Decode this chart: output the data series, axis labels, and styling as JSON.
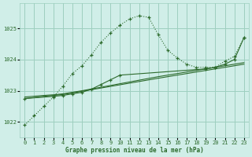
{
  "title": "Graphe pression niveau de la mer (hPa)",
  "bg_color": "#d0eee8",
  "grid_color": "#9ecfbf",
  "line_color": "#2d6b2d",
  "xlim": [
    -0.5,
    23.5
  ],
  "ylim": [
    1021.5,
    1025.8
  ],
  "yticks": [
    1022,
    1023,
    1024,
    1025
  ],
  "xticks": [
    0,
    1,
    2,
    3,
    4,
    5,
    6,
    7,
    8,
    9,
    10,
    11,
    12,
    13,
    14,
    15,
    16,
    17,
    18,
    19,
    20,
    21,
    22,
    23
  ],
  "series1_x": [
    0,
    1,
    2,
    3,
    4,
    5,
    6,
    7,
    8,
    9,
    10,
    11,
    12,
    13,
    14,
    15,
    16,
    17,
    18,
    19,
    20,
    21,
    22,
    23
  ],
  "series1_y": [
    1021.9,
    1022.2,
    1022.5,
    1022.8,
    1023.15,
    1023.55,
    1023.8,
    1024.15,
    1024.55,
    1024.85,
    1025.1,
    1025.3,
    1025.4,
    1025.35,
    1024.8,
    1024.3,
    1024.05,
    1023.85,
    1023.75,
    1023.75,
    1023.75,
    1023.95,
    1024.1,
    1024.7
  ],
  "series2_x": [
    0,
    2,
    3,
    4,
    5,
    6,
    14,
    15,
    16,
    17,
    18,
    19,
    20,
    21,
    22,
    23
  ],
  "series2_y": [
    1022.8,
    1022.85,
    1022.87,
    1022.9,
    1022.95,
    1023.0,
    1023.45,
    1023.5,
    1023.55,
    1023.6,
    1023.65,
    1023.7,
    1023.75,
    1023.8,
    1023.85,
    1023.9
  ],
  "series3_x": [
    0,
    2,
    3,
    4,
    5,
    14,
    16,
    17,
    18,
    19,
    20,
    21,
    22,
    23
  ],
  "series3_y": [
    1022.75,
    1022.82,
    1022.85,
    1022.88,
    1022.93,
    1023.4,
    1023.5,
    1023.55,
    1023.6,
    1023.65,
    1023.7,
    1023.75,
    1023.8,
    1023.85
  ],
  "series4_x": [
    0,
    3,
    4,
    5,
    6,
    7,
    8,
    9,
    10,
    19,
    20,
    21,
    22,
    23
  ],
  "series4_y": [
    1022.75,
    1022.82,
    1022.85,
    1022.9,
    1022.95,
    1023.05,
    1023.2,
    1023.35,
    1023.5,
    1023.7,
    1023.75,
    1023.85,
    1024.0,
    1024.7
  ]
}
